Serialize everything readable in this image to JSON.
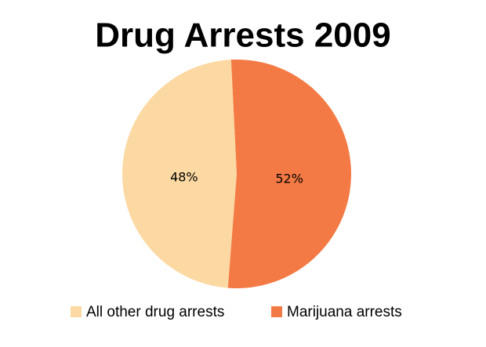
{
  "chart_data": {
    "type": "pie",
    "title": "Drug Arrests 2009",
    "categories": [
      "All other drug arrests",
      "Marijuana arrests"
    ],
    "values": [
      48,
      52
    ],
    "value_labels": [
      "48%",
      "52%"
    ],
    "colors": [
      "#fcd9a2",
      "#f47a45"
    ]
  }
}
